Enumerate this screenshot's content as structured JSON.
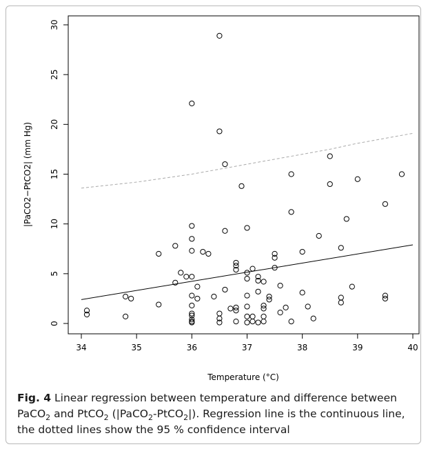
{
  "chart_data": {
    "type": "scatter",
    "xlabel": "Temperature (°C)",
    "ylabel": "|PaCO2−PtCO2| (mm Hg)",
    "xlim": [
      34,
      40
    ],
    "ylim": [
      0,
      30
    ],
    "xticks": [
      "34",
      "35",
      "36",
      "37",
      "38",
      "39",
      "40"
    ],
    "yticks": [
      "0",
      "5",
      "10",
      "15",
      "20",
      "25",
      "30"
    ],
    "grid": false,
    "legend": "none",
    "regression_line": {
      "x": [
        34,
        40
      ],
      "y": [
        2.4,
        7.9
      ],
      "style": "solid",
      "color": "#000000"
    },
    "confidence_upper": {
      "x": [
        34,
        34.5,
        35,
        35.5,
        36,
        36.5,
        37,
        37.5,
        38,
        38.5,
        39,
        39.5,
        40
      ],
      "y": [
        13.6,
        13.9,
        14.2,
        14.6,
        15.0,
        15.5,
        16.0,
        16.5,
        17.0,
        17.5,
        18.1,
        18.6,
        19.1
      ],
      "style": "dashed",
      "color": "#a8a8a8"
    },
    "points": [
      [
        34.1,
        1.3
      ],
      [
        34.1,
        0.9
      ],
      [
        34.8,
        2.7
      ],
      [
        34.8,
        0.7
      ],
      [
        34.9,
        2.5
      ],
      [
        35.4,
        7.0
      ],
      [
        35.4,
        1.9
      ],
      [
        35.7,
        7.8
      ],
      [
        35.7,
        4.1
      ],
      [
        35.8,
        5.1
      ],
      [
        35.9,
        4.7
      ],
      [
        36.0,
        22.1
      ],
      [
        36.0,
        9.8
      ],
      [
        36.0,
        8.5
      ],
      [
        36.0,
        7.3
      ],
      [
        36.0,
        4.7
      ],
      [
        36.0,
        2.8
      ],
      [
        36.0,
        1.8
      ],
      [
        36.0,
        1.0
      ],
      [
        36.0,
        0.8
      ],
      [
        36.0,
        0.4
      ],
      [
        36.0,
        0.2
      ],
      [
        36.0,
        0.1
      ],
      [
        36.1,
        3.7
      ],
      [
        36.1,
        2.5
      ],
      [
        36.2,
        7.2
      ],
      [
        36.3,
        7.0
      ],
      [
        36.4,
        2.7
      ],
      [
        36.5,
        28.9
      ],
      [
        36.5,
        19.3
      ],
      [
        36.5,
        1.0
      ],
      [
        36.5,
        0.5
      ],
      [
        36.5,
        0.1
      ],
      [
        36.6,
        16.0
      ],
      [
        36.6,
        9.3
      ],
      [
        36.6,
        3.4
      ],
      [
        36.7,
        1.5
      ],
      [
        36.8,
        6.1
      ],
      [
        36.8,
        5.8
      ],
      [
        36.8,
        5.4
      ],
      [
        36.8,
        1.6
      ],
      [
        36.8,
        1.3
      ],
      [
        36.8,
        0.2
      ],
      [
        36.9,
        13.8
      ],
      [
        37.0,
        9.6
      ],
      [
        37.0,
        5.1
      ],
      [
        37.0,
        4.5
      ],
      [
        37.0,
        2.8
      ],
      [
        37.0,
        1.7
      ],
      [
        37.0,
        0.7
      ],
      [
        37.0,
        0.1
      ],
      [
        37.1,
        5.5
      ],
      [
        37.1,
        0.7
      ],
      [
        37.1,
        0.2
      ],
      [
        37.2,
        4.7
      ],
      [
        37.2,
        4.3
      ],
      [
        37.2,
        3.2
      ],
      [
        37.2,
        0.1
      ],
      [
        37.3,
        4.2
      ],
      [
        37.3,
        1.8
      ],
      [
        37.3,
        1.5
      ],
      [
        37.3,
        0.7
      ],
      [
        37.3,
        0.2
      ],
      [
        37.4,
        2.7
      ],
      [
        37.4,
        2.4
      ],
      [
        37.5,
        7.0
      ],
      [
        37.5,
        6.6
      ],
      [
        37.5,
        5.6
      ],
      [
        37.6,
        3.8
      ],
      [
        37.6,
        1.1
      ],
      [
        37.7,
        1.6
      ],
      [
        37.8,
        15.0
      ],
      [
        37.8,
        11.2
      ],
      [
        37.8,
        0.2
      ],
      [
        38.0,
        7.2
      ],
      [
        38.0,
        3.1
      ],
      [
        38.1,
        1.7
      ],
      [
        38.2,
        0.5
      ],
      [
        38.3,
        8.8
      ],
      [
        38.5,
        16.8
      ],
      [
        38.5,
        14.0
      ],
      [
        38.7,
        7.6
      ],
      [
        38.7,
        2.6
      ],
      [
        38.7,
        2.1
      ],
      [
        38.8,
        10.5
      ],
      [
        38.9,
        3.7
      ],
      [
        39.0,
        14.5
      ],
      [
        39.5,
        12.0
      ],
      [
        39.5,
        2.8
      ],
      [
        39.5,
        2.5
      ],
      [
        39.8,
        15.0
      ]
    ]
  },
  "caption": {
    "label": "Fig. 4",
    "p1": " Linear regression between temperature and difference between PaCO",
    "sub1": "2",
    "p2": " and PtCO",
    "sub2": "2",
    "p3": " (|PaCO",
    "sub3": "2",
    "p4": "-PtCO",
    "sub4": "2",
    "p5": "|). Regression line is the continuous line, the dotted lines show the 95 % confidence interval"
  }
}
